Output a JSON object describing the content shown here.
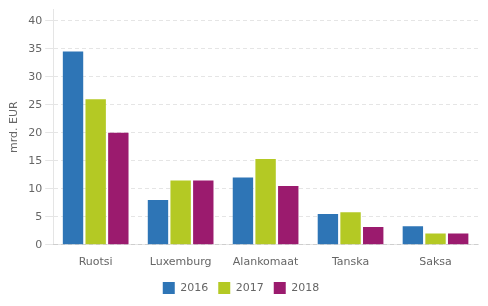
{
  "chart_data": {
    "type": "bar",
    "categories": [
      "Ruotsi",
      "Luxemburg",
      "Alankomaat",
      "Tanska",
      "Saksa"
    ],
    "series": [
      {
        "name": "2016",
        "color": "#2e75b6",
        "values": [
          34.5,
          8.0,
          12.0,
          5.5,
          3.3
        ]
      },
      {
        "name": "2017",
        "color": "#b4c924",
        "values": [
          26.0,
          11.5,
          15.3,
          5.8,
          2.0
        ]
      },
      {
        "name": "2018",
        "color": "#9b1b6e",
        "values": [
          20.0,
          11.5,
          10.5,
          3.2,
          2.0
        ]
      }
    ],
    "ylabel": "mrd. EUR",
    "ylim": [
      0,
      42
    ],
    "yticks": [
      0,
      5,
      10,
      15,
      20,
      25,
      30,
      35,
      40
    ],
    "grid": true,
    "legend": "bottom"
  }
}
